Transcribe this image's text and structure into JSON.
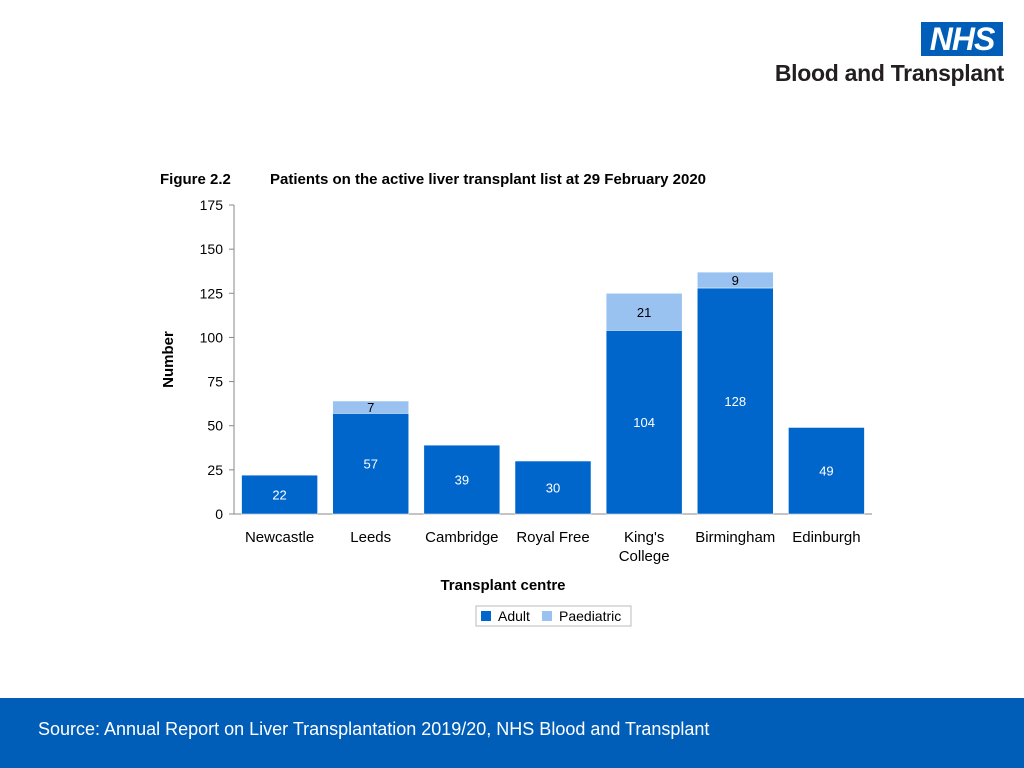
{
  "logo": {
    "nhs": "NHS",
    "org": "Blood and Transplant"
  },
  "figure": {
    "label": "Figure 2.2",
    "title": "Patients on the active liver transplant list at 29 February 2020"
  },
  "chart_data": {
    "type": "bar",
    "stacked": true,
    "categories": [
      "Newcastle",
      "Leeds",
      "Cambridge",
      "Royal Free",
      "King's College",
      "Birmingham",
      "Edinburgh"
    ],
    "category_lines": [
      [
        "Newcastle"
      ],
      [
        "Leeds"
      ],
      [
        "Cambridge"
      ],
      [
        "Royal Free"
      ],
      [
        "King's",
        "College"
      ],
      [
        "Birmingham"
      ],
      [
        "Edinburgh"
      ]
    ],
    "series": [
      {
        "name": "Adult",
        "color": "#0066CC",
        "label_color": "#ffffff",
        "values": [
          22,
          57,
          39,
          30,
          104,
          128,
          49
        ]
      },
      {
        "name": "Paediatric",
        "color": "#99C2F0",
        "label_color": "#000000",
        "values": [
          0,
          7,
          0,
          0,
          21,
          9,
          0
        ]
      }
    ],
    "xlabel": "Transplant centre",
    "ylabel": "Number",
    "ylim": [
      0,
      175
    ],
    "yticks": [
      0,
      25,
      50,
      75,
      100,
      125,
      150,
      175
    ],
    "legend": "bottom-center"
  },
  "footer": {
    "source": "Source: Annual Report on Liver Transplantation 2019/20, NHS Blood and Transplant"
  }
}
